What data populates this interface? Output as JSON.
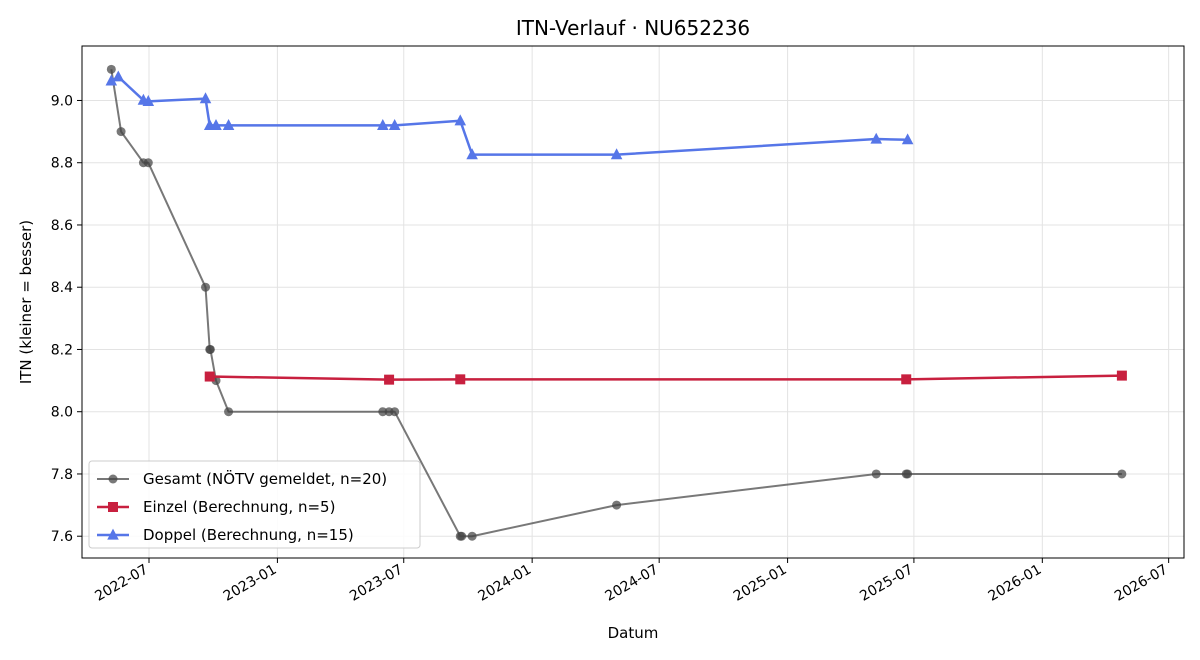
{
  "chart_data": {
    "type": "line",
    "title": "ITN-Verlauf · NU652236",
    "xlabel": "Datum",
    "ylabel": "ITN  (kleiner = besser)",
    "x_type": "date",
    "xlim": [
      "2022-03-27",
      "2026-07-23"
    ],
    "ylim": [
      7.53,
      9.175
    ],
    "x_ticks": [
      "2022-07",
      "2023-01",
      "2023-07",
      "2024-01",
      "2024-07",
      "2025-01",
      "2025-07",
      "2026-01",
      "2026-07"
    ],
    "x_tick_dates": [
      "2022-07-01",
      "2023-01-01",
      "2023-07-01",
      "2024-01-01",
      "2024-07-01",
      "2025-01-01",
      "2025-07-01",
      "2026-01-01",
      "2026-07-01"
    ],
    "y_ticks": [
      7.6,
      7.8,
      8.0,
      8.2,
      8.4,
      8.6,
      8.8,
      9.0
    ],
    "y_tick_labels": [
      "7.6",
      "7.8",
      "8.0",
      "8.2",
      "8.4",
      "8.6",
      "8.8",
      "9.0"
    ],
    "grid": true,
    "legend_position": "lower-left",
    "series": [
      {
        "name": "Gesamt (NÖTV gemeldet, n=20)",
        "color": "#444444",
        "marker": "circle",
        "points": [
          {
            "x": "2022-05-08",
            "y": 9.1
          },
          {
            "x": "2022-05-22",
            "y": 8.9
          },
          {
            "x": "2022-06-23",
            "y": 8.8
          },
          {
            "x": "2022-06-30",
            "y": 8.8
          },
          {
            "x": "2022-09-20",
            "y": 8.4
          },
          {
            "x": "2022-09-26",
            "y": 8.2
          },
          {
            "x": "2022-09-27",
            "y": 8.2
          },
          {
            "x": "2022-10-05",
            "y": 8.1
          },
          {
            "x": "2022-10-23",
            "y": 8.0
          },
          {
            "x": "2023-06-01",
            "y": 8.0
          },
          {
            "x": "2023-06-10",
            "y": 8.0
          },
          {
            "x": "2023-06-18",
            "y": 8.0
          },
          {
            "x": "2023-09-20",
            "y": 7.6
          },
          {
            "x": "2023-09-22",
            "y": 7.6
          },
          {
            "x": "2023-10-07",
            "y": 7.6
          },
          {
            "x": "2024-05-01",
            "y": 7.7
          },
          {
            "x": "2025-05-08",
            "y": 7.8
          },
          {
            "x": "2025-06-20",
            "y": 7.8
          },
          {
            "x": "2025-06-22",
            "y": 7.8
          },
          {
            "x": "2026-04-25",
            "y": 7.8
          }
        ]
      },
      {
        "name": "Einzel (Berechnung, n=5)",
        "color": "#c8203f",
        "marker": "square",
        "points": [
          {
            "x": "2022-09-26",
            "y": 8.113
          },
          {
            "x": "2023-06-10",
            "y": 8.103
          },
          {
            "x": "2023-09-20",
            "y": 8.104
          },
          {
            "x": "2025-06-20",
            "y": 8.104
          },
          {
            "x": "2026-04-25",
            "y": 8.116
          }
        ]
      },
      {
        "name": "Doppel (Berechnung, n=15)",
        "color": "#5676e8",
        "marker": "triangle",
        "points": [
          {
            "x": "2022-05-08",
            "y": 9.063
          },
          {
            "x": "2022-05-18",
            "y": 9.076
          },
          {
            "x": "2022-06-23",
            "y": 9.001
          },
          {
            "x": "2022-06-30",
            "y": 8.997
          },
          {
            "x": "2022-09-20",
            "y": 9.006
          },
          {
            "x": "2022-09-26",
            "y": 8.92
          },
          {
            "x": "2022-10-05",
            "y": 8.92
          },
          {
            "x": "2022-10-23",
            "y": 8.92
          },
          {
            "x": "2023-06-01",
            "y": 8.92
          },
          {
            "x": "2023-06-18",
            "y": 8.92
          },
          {
            "x": "2023-09-20",
            "y": 8.935
          },
          {
            "x": "2023-10-07",
            "y": 8.826
          },
          {
            "x": "2024-05-01",
            "y": 8.826
          },
          {
            "x": "2025-05-08",
            "y": 8.876
          },
          {
            "x": "2025-06-22",
            "y": 8.874
          }
        ]
      }
    ]
  }
}
